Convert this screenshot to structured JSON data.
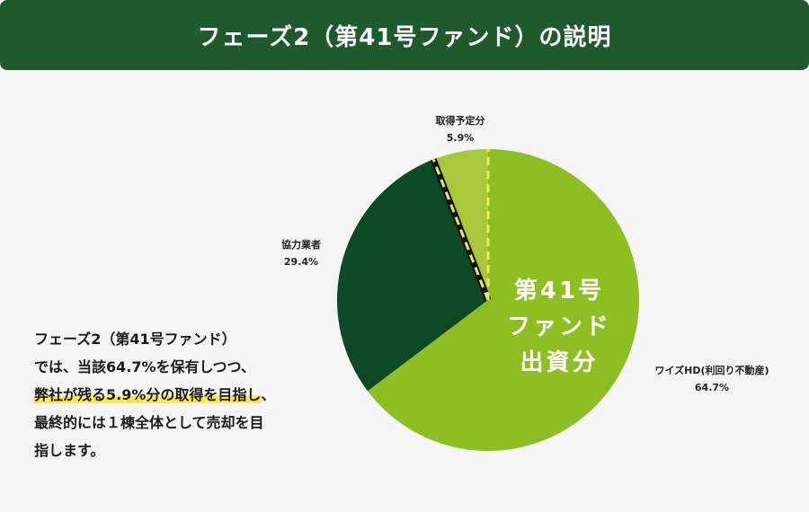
{
  "header": {
    "title": "フェーズ2（第41号ファンド）の説明"
  },
  "description": {
    "line1": "フェーズ2（第41号ファンド）",
    "line2": "では、当該64.7%を保有しつつ、",
    "line3_highlight": "弊社が残る5.9%分の取得を目指し",
    "line3_tail": "、",
    "line4": "最終的には１棟全体として売却を目",
    "line5": "指します。"
  },
  "colors": {
    "header_bg": "#1e5a2c",
    "highlight": "#ffe94a",
    "divider_dash": "#f2e94e"
  },
  "chart_data": {
    "type": "pie",
    "title": "",
    "slices": [
      {
        "label": "ワイズHD(利回り不動産)",
        "value": 64.7,
        "value_label": "64.7%",
        "color": "#8dbf22"
      },
      {
        "label": "協力業者",
        "value": 29.4,
        "value_label": "29.4%",
        "color": "#0b4a25"
      },
      {
        "label": "取得予定分",
        "value": 5.9,
        "value_label": "5.9%",
        "color": "#a6c83a"
      }
    ],
    "inner_label": [
      "第41号",
      "ファンド",
      "出資分"
    ]
  }
}
